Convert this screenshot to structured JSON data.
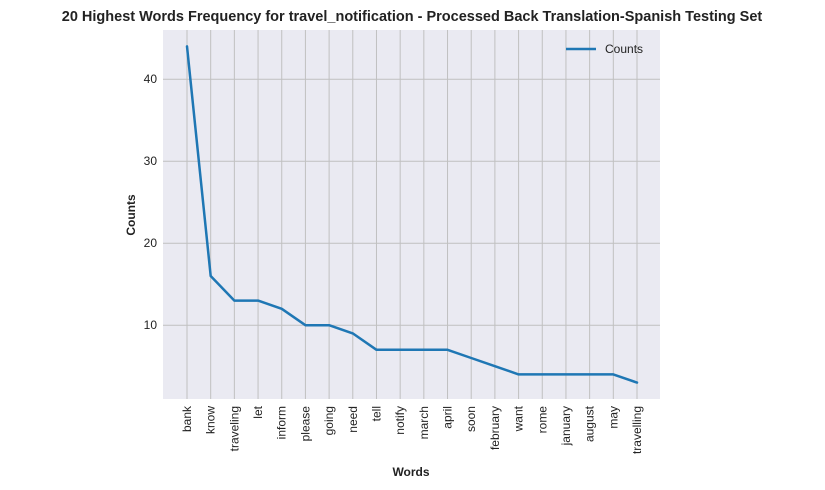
{
  "chart_data": {
    "type": "line",
    "title": "20 Highest Words Frequency for travel_notification - Processed Back Translation-Spanish Testing Set",
    "xlabel": "Words",
    "ylabel": "Counts",
    "categories": [
      "bank",
      "know",
      "traveling",
      "let",
      "inform",
      "please",
      "going",
      "need",
      "tell",
      "notify",
      "march",
      "april",
      "soon",
      "february",
      "want",
      "rome",
      "january",
      "august",
      "may",
      "travelling"
    ],
    "series": [
      {
        "name": "Counts",
        "values": [
          44,
          16,
          13,
          13,
          12,
          10,
          10,
          9,
          7,
          7,
          7,
          7,
          6,
          5,
          4,
          4,
          4,
          4,
          4,
          3
        ],
        "color": "#1f77b4"
      }
    ],
    "ylim": [
      1.0,
      46.0
    ],
    "yticks": [
      10,
      20,
      30,
      40
    ],
    "grid": true,
    "legend_position": "top-right",
    "plot_background": "#eaeaf2",
    "grid_color": "#c0c0c0"
  }
}
